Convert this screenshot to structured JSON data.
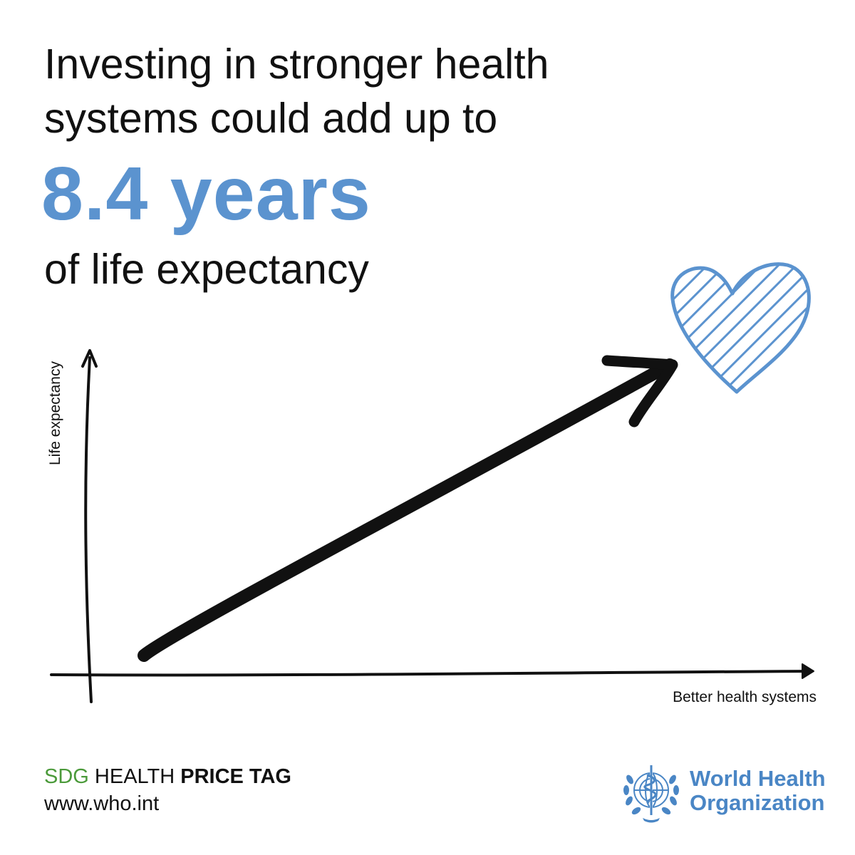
{
  "headline": {
    "line1": "Investing in stronger health",
    "line2": "systems could add up to",
    "highlight": "8.4 years",
    "line3": "of life expectancy"
  },
  "graph": {
    "y_axis_label": "Life expectancy",
    "x_axis_label": "Better health systems",
    "icon": "heart-icon"
  },
  "footer": {
    "tag_prefix": "SDG",
    "tag_middle": "HEALTH",
    "tag_bold": "PRICE TAG",
    "website": "www.who.int"
  },
  "organization": {
    "name_line1": "World Health",
    "name_line2": "Organization",
    "logo": "who-emblem-icon"
  },
  "colors": {
    "accent_blue": "#5b93cf",
    "sdg_green": "#4b9a3a",
    "who_blue": "#4a86c5",
    "text": "#111111"
  }
}
